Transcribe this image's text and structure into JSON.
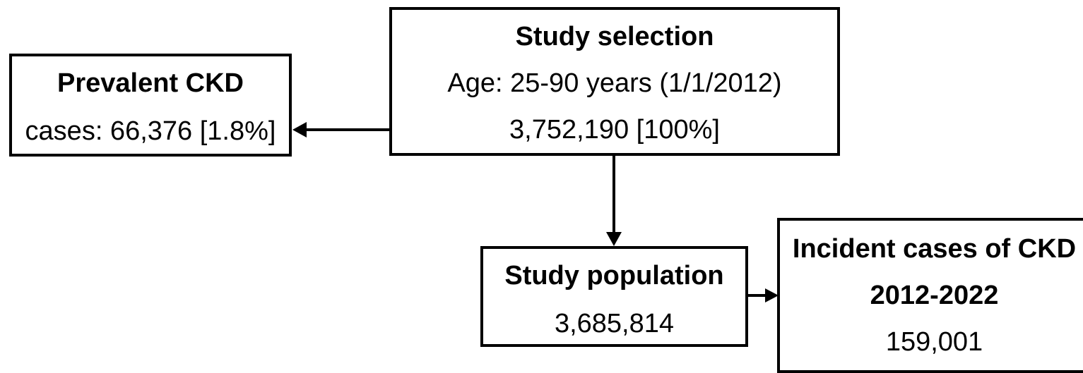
{
  "study_selection": {
    "title": "Study selection",
    "age": "Age: 25-90 years (1/1/2012)",
    "count": "3,752,190 [100%]"
  },
  "prevalent_ckd": {
    "title": "Prevalent CKD",
    "cases": "cases: 66,376 [1.8%]"
  },
  "study_population": {
    "title": "Study population",
    "count": "3,685,814"
  },
  "incident_ckd": {
    "title": "Incident cases of CKD",
    "period": "2012-2022",
    "count": "159,001"
  },
  "colors": {
    "stroke": "#000000",
    "background": "#ffffff"
  }
}
